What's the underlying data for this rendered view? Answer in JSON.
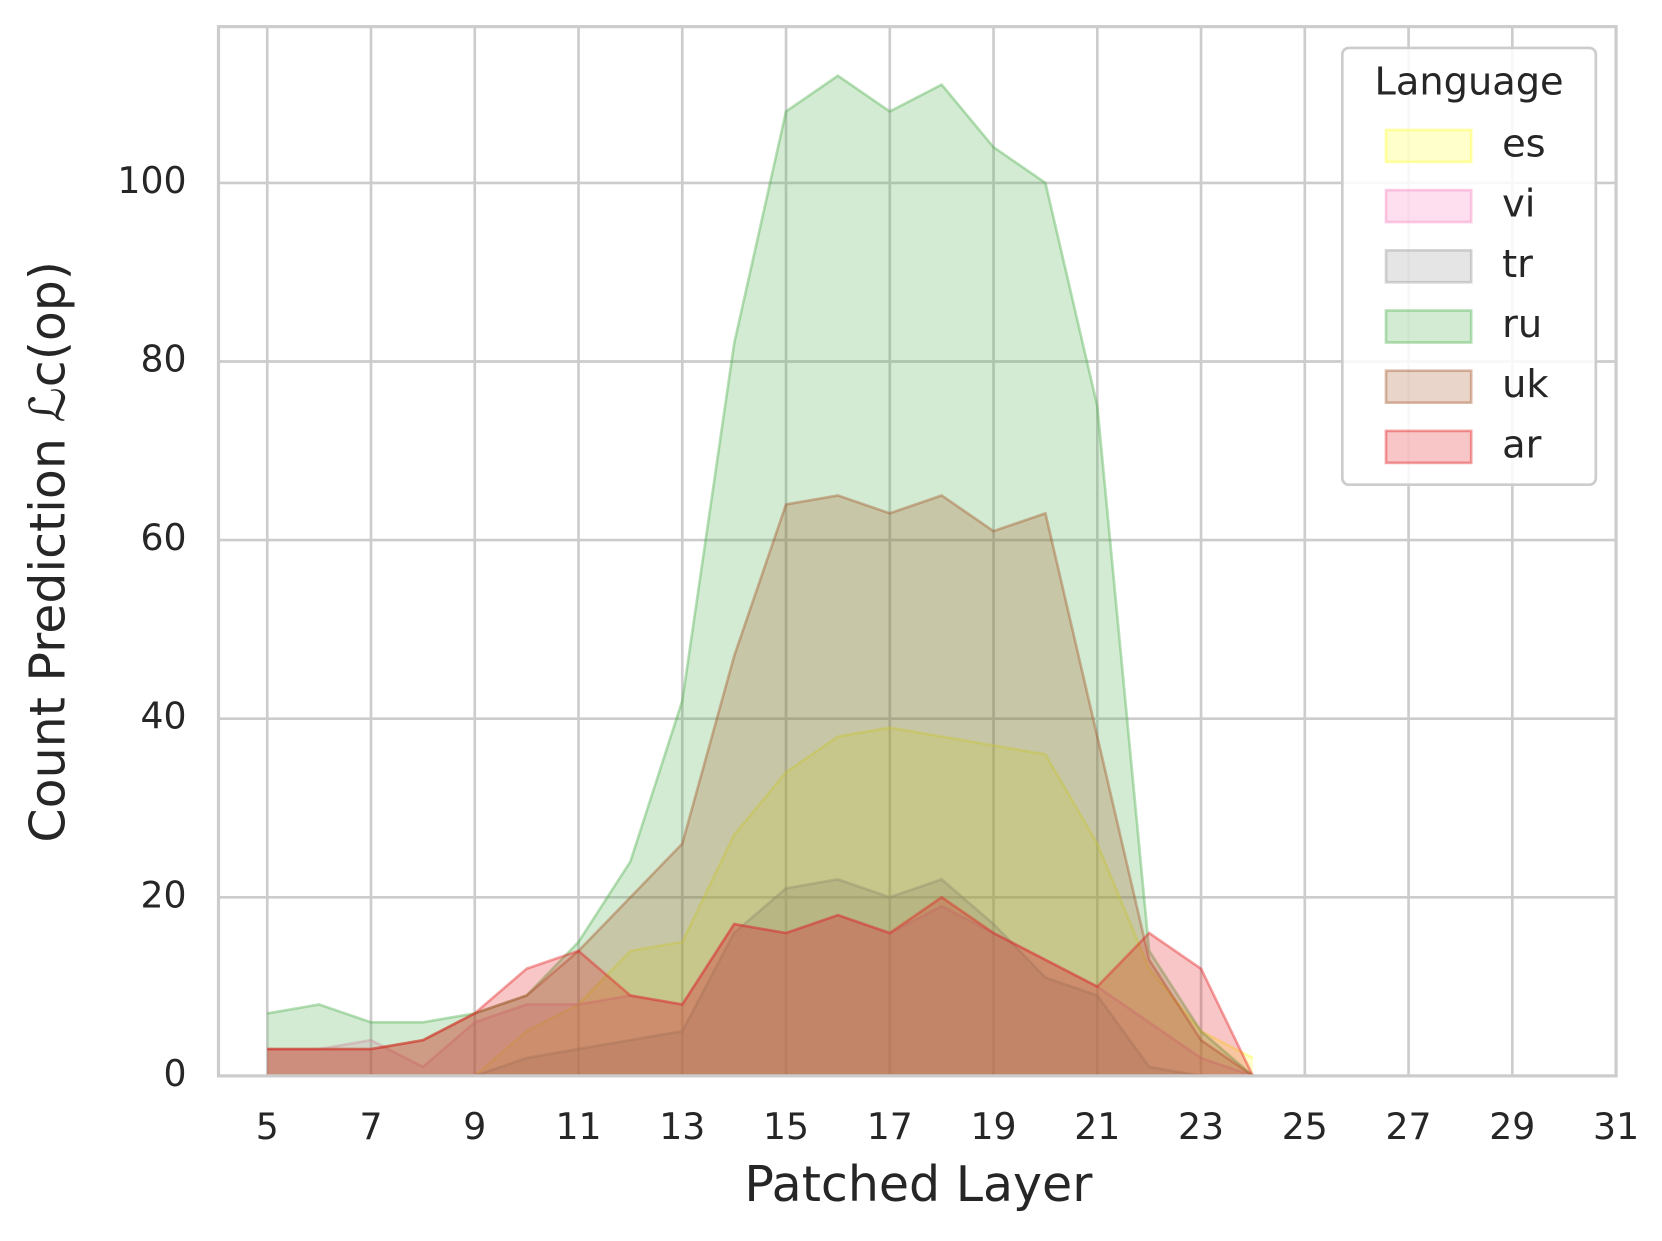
{
  "chart_data": {
    "type": "area",
    "xlabel": "Patched Layer",
    "ylabel": "Count Prediction ℒc(op)",
    "x": [
      5,
      6,
      7,
      8,
      9,
      10,
      11,
      12,
      13,
      14,
      15,
      16,
      17,
      18,
      19,
      20,
      21,
      22,
      23,
      24
    ],
    "series": [
      {
        "name": "es",
        "color": "#ffff33",
        "values": [
          0,
          0,
          0,
          0,
          0,
          5,
          8,
          14,
          15,
          27,
          34,
          38,
          39,
          38,
          37,
          36,
          26,
          12,
          5,
          2
        ]
      },
      {
        "name": "vi",
        "color": "#f781bf",
        "values": [
          3,
          3,
          4,
          1,
          6,
          8,
          8,
          9,
          8,
          17,
          16,
          18,
          16,
          19,
          16,
          13,
          10,
          6,
          2,
          0
        ]
      },
      {
        "name": "tr",
        "color": "#999999",
        "values": [
          0,
          0,
          0,
          0,
          0,
          2,
          3,
          4,
          5,
          16,
          21,
          22,
          20,
          22,
          17,
          11,
          9,
          1,
          0,
          0
        ]
      },
      {
        "name": "ru",
        "color": "#4daf4a",
        "values": [
          7,
          8,
          6,
          6,
          7,
          9,
          15,
          24,
          42,
          82,
          108,
          112,
          108,
          111,
          104,
          100,
          75,
          14,
          5,
          0
        ]
      },
      {
        "name": "uk",
        "color": "#a65628",
        "values": [
          3,
          3,
          3,
          4,
          7,
          9,
          14,
          20,
          26,
          47,
          64,
          65,
          63,
          65,
          61,
          63,
          38,
          13,
          4,
          0
        ]
      },
      {
        "name": "ar",
        "color": "#e41a1c",
        "values": [
          3,
          3,
          3,
          4,
          7,
          12,
          14,
          9,
          8,
          17,
          16,
          18,
          16,
          20,
          16,
          13,
          10,
          16,
          12,
          0
        ]
      }
    ],
    "legend_title": "Language",
    "legend": "upper right",
    "xlim": [
      4.06,
      31
    ],
    "xticks": [
      5,
      7,
      9,
      11,
      13,
      15,
      17,
      19,
      21,
      23,
      25,
      27,
      29,
      31
    ],
    "ylim": [
      0,
      117.5
    ],
    "yticks": [
      0,
      20,
      40,
      60,
      80,
      100
    ],
    "grid": true
  }
}
